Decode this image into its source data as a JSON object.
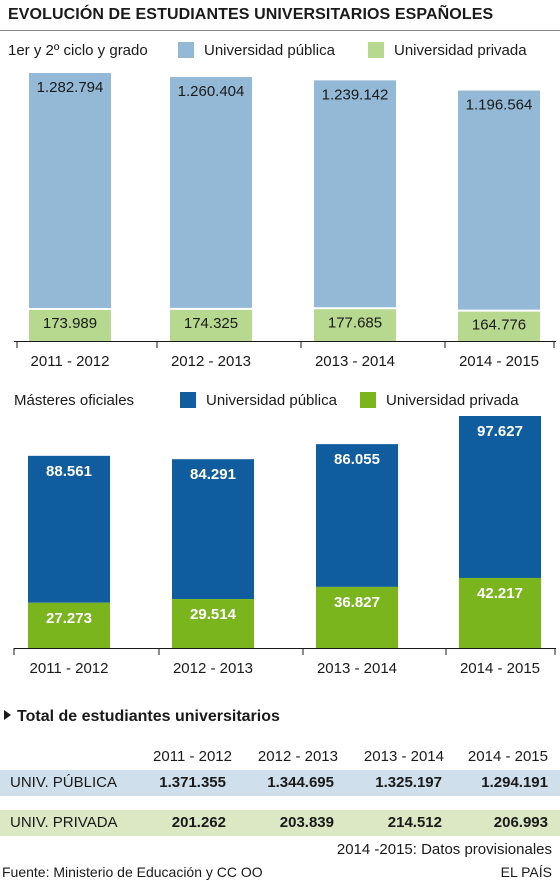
{
  "title": "EVOLUCIÓN DE ESTUDIANTES UNIVERSITARIOS ESPAÑOLES",
  "colors": {
    "grado_publica": "#93b9d6",
    "grado_privada": "#b7d88f",
    "master_publica": "#0f5c9e",
    "master_privada": "#7ab51d"
  },
  "chart_data": [
    {
      "type": "bar",
      "title": "1er y 2º ciclo y grado",
      "categories": [
        "2011 - 2012",
        "2012 - 2013",
        "2013 - 2014",
        "2014 - 2015"
      ],
      "series": [
        {
          "name": "Universidad  pública",
          "values": [
            1282794,
            1260404,
            1239142,
            1196564
          ],
          "labels": [
            "1.282.794",
            "1.260.404",
            "1.239.142",
            "1.196.564"
          ]
        },
        {
          "name": "Universidad  privada",
          "values": [
            173989,
            174325,
            177685,
            164776
          ],
          "labels": [
            "173.989",
            "174.325",
            "177.685",
            "164.776"
          ]
        }
      ],
      "legend": "top",
      "grid": false
    },
    {
      "type": "bar",
      "title": "Másteres oficiales",
      "categories": [
        "2011 - 2012",
        "2012 - 2013",
        "2013 - 2014",
        "2014 - 2015"
      ],
      "series": [
        {
          "name": "Universidad  pública",
          "values": [
            88561,
            84291,
            86055,
            97627
          ],
          "labels": [
            "88.561",
            "84.291",
            "86.055",
            "97.627"
          ]
        },
        {
          "name": "Universidad  privada",
          "values": [
            27273,
            29514,
            36827,
            42217
          ],
          "labels": [
            "27.273",
            "29.514",
            "36.827",
            "42.217"
          ]
        }
      ],
      "legend": "top",
      "grid": false
    }
  ],
  "table": {
    "title": "Total de estudiantes universitarios",
    "headers": [
      "2011 - 2012",
      "2012 - 2013",
      "2013 - 2014",
      "2014 - 2015"
    ],
    "rows": [
      {
        "label": "UNIV. PÚBLICA",
        "values": [
          "1.371.355",
          "1.344.695",
          "1.325.197",
          "1.294.191"
        ]
      },
      {
        "label": "UNIV. PRIVADA",
        "values": [
          "201.262",
          "203.839",
          "214.512",
          "206.993"
        ]
      }
    ]
  },
  "note": "2014  -2015: Datos provisionales",
  "source": "Fuente: Ministerio de Educación y CC OO",
  "brand": "EL PAÍS"
}
